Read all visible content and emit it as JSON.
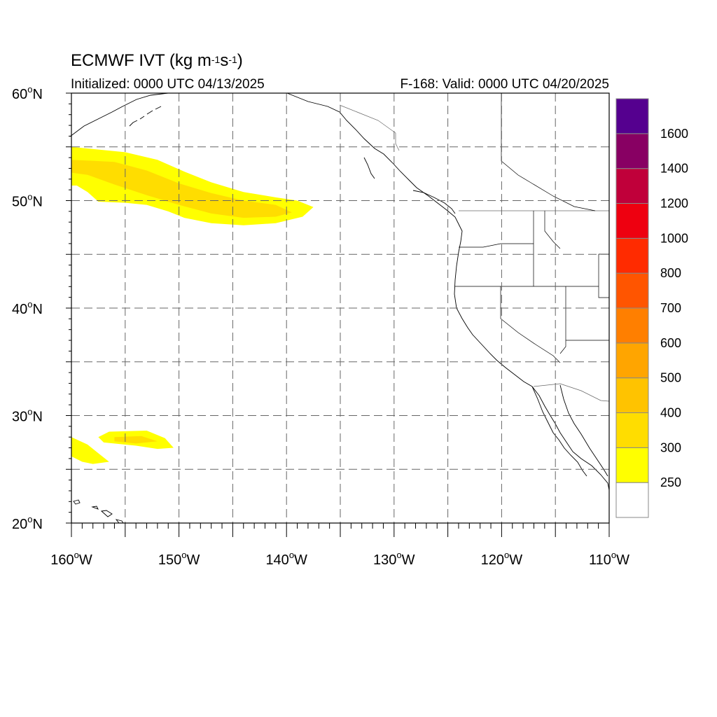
{
  "header": {
    "title_main": "ECMWF IVT (kg m",
    "title_exp1": "-1",
    "title_mid": "s",
    "title_exp2": "-1",
    "title_end": ")",
    "initialized": "Initialized: 0000 UTC 04/13/2025",
    "valid": "F-168: Valid: 0000 UTC 04/20/2025"
  },
  "map_data": {
    "projection": "cylindrical equidistant",
    "extent": {
      "lon": [
        -160,
        -110
      ],
      "lat": [
        20,
        60
      ]
    },
    "grid_lines": "dashed",
    "lat_ticks": [
      {
        "value": 60,
        "label": "60",
        "hemi": "N"
      },
      {
        "value": 50,
        "label": "50",
        "hemi": "N"
      },
      {
        "value": 40,
        "label": "40",
        "hemi": "N"
      },
      {
        "value": 30,
        "label": "30",
        "hemi": "N"
      },
      {
        "value": 20,
        "label": "20",
        "hemi": "N"
      }
    ],
    "lon_ticks": [
      {
        "value": -160,
        "label": "160",
        "hemi": "W"
      },
      {
        "value": -150,
        "label": "150",
        "hemi": "W"
      },
      {
        "value": -140,
        "label": "140",
        "hemi": "W"
      },
      {
        "value": -130,
        "label": "130",
        "hemi": "W"
      },
      {
        "value": -120,
        "label": "120",
        "hemi": "W"
      },
      {
        "value": -110,
        "label": "110",
        "hemi": "W"
      }
    ],
    "ivt_regions": [
      {
        "name": "north-pacific-plume",
        "fill": "#ffff00",
        "points": [
          [
            -160,
            55
          ],
          [
            -155,
            54.5
          ],
          [
            -152,
            53.8
          ],
          [
            -149.5,
            52.7
          ],
          [
            -147,
            51.7
          ],
          [
            -144,
            50.8
          ],
          [
            -141,
            50.3
          ],
          [
            -139,
            50
          ],
          [
            -137.5,
            49.4
          ],
          [
            -138.5,
            48.5
          ],
          [
            -141,
            47.9
          ],
          [
            -144,
            47.7
          ],
          [
            -147,
            47.9
          ],
          [
            -149.5,
            48.4
          ],
          [
            -151,
            49
          ],
          [
            -153,
            49.6
          ],
          [
            -155,
            49.8
          ],
          [
            -157.5,
            49.9
          ],
          [
            -158.5,
            50.8
          ],
          [
            -159.5,
            51.4
          ],
          [
            -160,
            51.4
          ]
        ]
      },
      {
        "name": "north-pacific-plume-core",
        "fill": "#ffdd00",
        "points": [
          [
            -160,
            53.8
          ],
          [
            -156,
            53.6
          ],
          [
            -153,
            52.8
          ],
          [
            -150,
            51.6
          ],
          [
            -147,
            50.7
          ],
          [
            -144,
            50
          ],
          [
            -141,
            49.6
          ],
          [
            -139.5,
            48.9
          ],
          [
            -141,
            48.5
          ],
          [
            -144,
            48.4
          ],
          [
            -147,
            48.8
          ],
          [
            -150,
            49.6
          ],
          [
            -153,
            50.5
          ],
          [
            -156,
            51.5
          ],
          [
            -158.5,
            52.4
          ],
          [
            -160,
            52.6
          ]
        ]
      },
      {
        "name": "subtropical-band",
        "fill": "#ffff00",
        "points": [
          [
            -156.5,
            28.5
          ],
          [
            -153,
            28.6
          ],
          [
            -151.3,
            27.9
          ],
          [
            -150.5,
            27
          ],
          [
            -152,
            26.9
          ],
          [
            -154,
            27.2
          ],
          [
            -157,
            27.5
          ],
          [
            -157.5,
            28
          ],
          [
            -156.5,
            28.5
          ]
        ]
      },
      {
        "name": "subtropical-band-core",
        "fill": "#ffdd00",
        "points": [
          [
            -156,
            28
          ],
          [
            -153.5,
            28.1
          ],
          [
            -152,
            27.6
          ],
          [
            -154,
            27.4
          ],
          [
            -156,
            27.6
          ]
        ]
      },
      {
        "name": "subtropical-west-patch",
        "fill": "#ffff00",
        "points": [
          [
            -160,
            28
          ],
          [
            -158.5,
            27.3
          ],
          [
            -157.5,
            26.5
          ],
          [
            -156.5,
            25.7
          ],
          [
            -158,
            25.5
          ],
          [
            -159,
            25.7
          ],
          [
            -160,
            26.2
          ]
        ]
      }
    ]
  },
  "colorbar": {
    "levels": [
      {
        "color": "#ffffff",
        "label": "250"
      },
      {
        "color": "#ffff00",
        "label": "300"
      },
      {
        "color": "#ffdd00",
        "label": "400"
      },
      {
        "color": "#ffc300",
        "label": "500"
      },
      {
        "color": "#ffa500",
        "label": "600"
      },
      {
        "color": "#ff7f00",
        "label": "700"
      },
      {
        "color": "#ff5500",
        "label": "800"
      },
      {
        "color": "#ff2b00",
        "label": "1000"
      },
      {
        "color": "#ee0010",
        "label": "1200"
      },
      {
        "color": "#c0003a",
        "label": "1400"
      },
      {
        "color": "#880063",
        "label": "1600"
      },
      {
        "color": "#55008f",
        "label": ""
      }
    ]
  }
}
